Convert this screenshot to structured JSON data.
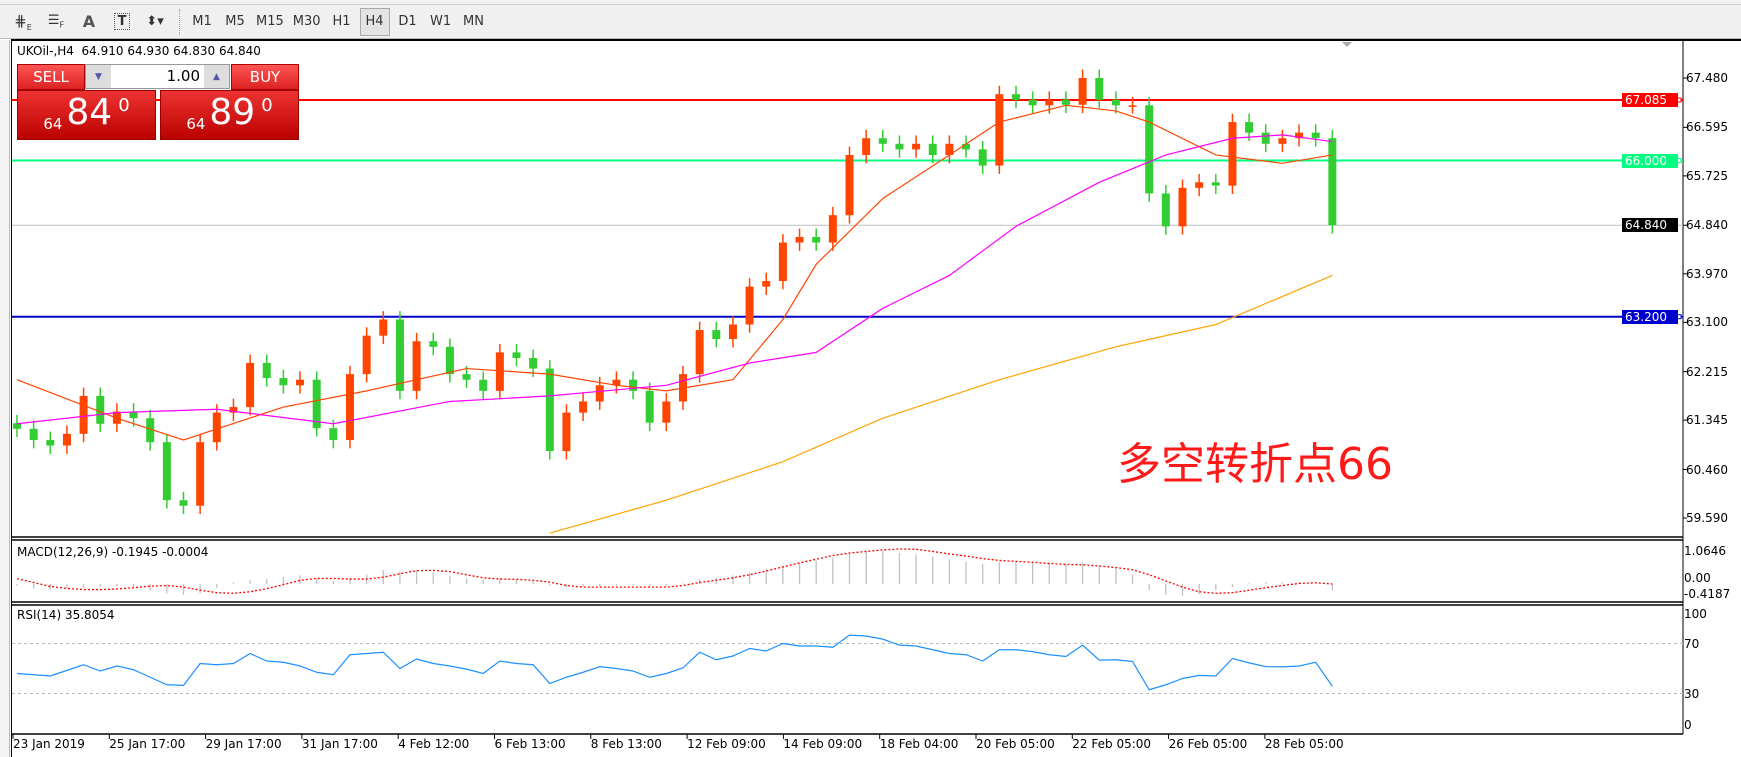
{
  "toolbar": {
    "tools": [
      {
        "icon": "fibonacci-expansion-icon",
        "label": "E"
      },
      {
        "icon": "fibonacci-fan-icon",
        "label": "F"
      },
      {
        "icon": "text-icon",
        "label": "A"
      },
      {
        "icon": "text-label-icon",
        "label": "T"
      },
      {
        "icon": "arrows-icon",
        "label": "▾"
      }
    ],
    "timeframes": [
      "M1",
      "M5",
      "M15",
      "M30",
      "H1",
      "H4",
      "D1",
      "W1",
      "MN"
    ],
    "active_timeframe": "H4"
  },
  "chart": {
    "title": "UKOil-,H4  64.910 64.930 64.830 64.840",
    "symbol": "UKOil-",
    "timeframe": "H4"
  },
  "trade_panel": {
    "sell_label": "SELL",
    "buy_label": "BUY",
    "lot": "1.00",
    "sell_big": "84",
    "sell_small": "64",
    "sell_sup": "0",
    "buy_big": "89",
    "buy_small": "64",
    "buy_sup": "0"
  },
  "annotation": "多空转折点66",
  "indicators": {
    "macd_label": "MACD(12,26,9) -0.1945 -0.0004",
    "rsi_label": "RSI(14) 35.8054"
  },
  "colors": {
    "bull": "#ff4500",
    "bear": "#32cd32",
    "ma_fast": "#ff4500",
    "ma_mid": "#ff00ff",
    "ma_slow": "#ffa500",
    "rsi": "#1e90ff",
    "macd_signal": "#ff0000",
    "macd_hist": "#c0c0c0"
  },
  "chart_data": {
    "type": "candlestick",
    "price_axis": {
      "ticks": [
        "67.480",
        "66.595",
        "65.725",
        "64.840",
        "63.970",
        "63.100",
        "62.215",
        "61.345",
        "60.460",
        "59.590"
      ],
      "range": [
        59.59,
        67.48
      ]
    },
    "time_axis": [
      "23 Jan 2019",
      "25 Jan 17:00",
      "29 Jan 17:00",
      "31 Jan 17:00",
      "4 Feb 12:00",
      "6 Feb 13:00",
      "8 Feb 13:00",
      "12 Feb 09:00",
      "14 Feb 09:00",
      "18 Feb 04:00",
      "20 Feb 05:00",
      "22 Feb 05:00",
      "26 Feb 05:00",
      "28 Feb 05:00"
    ],
    "closes": [
      61.19,
      60.99,
      60.89,
      61.1,
      61.78,
      61.28,
      61.5,
      61.38,
      60.95,
      59.91,
      59.81,
      60.95,
      61.48,
      61.58,
      62.37,
      62.1,
      61.97,
      62.07,
      61.2,
      60.99,
      62.17,
      62.86,
      63.15,
      61.87,
      62.76,
      62.66,
      62.17,
      62.07,
      61.87,
      62.56,
      62.46,
      62.27,
      60.79,
      61.48,
      61.68,
      61.97,
      62.07,
      61.87,
      61.3,
      61.68,
      62.17,
      62.96,
      62.8,
      63.06,
      63.74,
      63.84,
      64.53,
      64.63,
      64.53,
      65.02,
      66.1,
      66.4,
      66.3,
      66.2,
      66.3,
      66.1,
      66.3,
      66.2,
      65.91,
      67.19,
      67.09,
      66.99,
      67.09,
      67.0,
      67.48,
      67.09,
      66.99,
      66.99,
      65.41,
      64.82,
      65.51,
      65.61,
      65.55,
      66.69,
      66.5,
      66.3,
      66.4,
      66.5,
      66.4,
      64.84
    ],
    "horizontal_lines": [
      {
        "price": 67.085,
        "label": "67.085",
        "color": "#ff0000"
      },
      {
        "price": 66.0,
        "label": "66.000",
        "color": "#00ff80"
      },
      {
        "price": 64.84,
        "label": "64.840",
        "color": "#000000",
        "line": "#c0c0c0"
      },
      {
        "price": 63.2,
        "label": "63.200",
        "color": "#0000cd"
      }
    ],
    "ma_fast": [
      [
        0,
        62.07
      ],
      [
        6,
        61.38
      ],
      [
        10,
        60.99
      ],
      [
        16,
        61.58
      ],
      [
        21,
        61.87
      ],
      [
        27,
        62.27
      ],
      [
        32,
        62.17
      ],
      [
        36,
        61.97
      ],
      [
        39,
        61.87
      ],
      [
        43,
        62.07
      ],
      [
        46,
        63.15
      ],
      [
        48,
        64.14
      ],
      [
        52,
        65.32
      ],
      [
        56,
        66.1
      ],
      [
        59,
        66.69
      ],
      [
        63,
        66.99
      ],
      [
        66,
        66.89
      ],
      [
        68,
        66.69
      ],
      [
        72,
        66.1
      ],
      [
        76,
        65.95
      ],
      [
        79,
        66.1
      ]
    ],
    "ma_mid": [
      [
        0,
        61.28
      ],
      [
        6,
        61.48
      ],
      [
        12,
        61.54
      ],
      [
        19,
        61.28
      ],
      [
        26,
        61.68
      ],
      [
        32,
        61.78
      ],
      [
        39,
        61.97
      ],
      [
        44,
        62.37
      ],
      [
        48,
        62.56
      ],
      [
        52,
        63.35
      ],
      [
        56,
        63.94
      ],
      [
        60,
        64.82
      ],
      [
        65,
        65.61
      ],
      [
        69,
        66.1
      ],
      [
        73,
        66.4
      ],
      [
        76,
        66.46
      ],
      [
        79,
        66.34
      ]
    ],
    "ma_slow": [
      [
        32,
        59.32
      ],
      [
        39,
        59.91
      ],
      [
        46,
        60.6
      ],
      [
        52,
        61.38
      ],
      [
        59,
        62.07
      ],
      [
        66,
        62.66
      ],
      [
        72,
        63.06
      ],
      [
        79,
        63.94
      ]
    ],
    "macd": {
      "axis": [
        "1.0646",
        "0.00",
        "-0.4187"
      ],
      "hist": [
        -0.05,
        -0.15,
        -0.18,
        -0.15,
        -0.12,
        -0.1,
        -0.08,
        -0.1,
        -0.2,
        -0.3,
        -0.35,
        -0.3,
        -0.12,
        0.05,
        0.12,
        0.15,
        0.22,
        0.28,
        0.2,
        0.1,
        0.2,
        0.3,
        0.45,
        0.4,
        0.45,
        0.38,
        0.25,
        0.18,
        0.15,
        0.2,
        0.15,
        0.12,
        -0.05,
        -0.12,
        -0.1,
        -0.08,
        -0.05,
        -0.05,
        -0.1,
        -0.08,
        0.02,
        0.15,
        0.2,
        0.28,
        0.38,
        0.48,
        0.6,
        0.68,
        0.75,
        0.85,
        1.0,
        1.05,
        1.06,
        1.0,
        0.95,
        0.88,
        0.8,
        0.72,
        0.65,
        0.7,
        0.72,
        0.7,
        0.68,
        0.65,
        0.7,
        0.6,
        0.5,
        0.3,
        -0.2,
        -0.35,
        -0.38,
        -0.32,
        -0.2,
        -0.1,
        0.02,
        0.05,
        0.05,
        0.06,
        0.0,
        -0.19
      ],
      "signal": [
        0.17,
        0.05,
        -0.08,
        -0.14,
        -0.18,
        -0.18,
        -0.16,
        -0.12,
        -0.07,
        -0.05,
        -0.1,
        -0.2,
        -0.28,
        -0.3,
        -0.25,
        -0.15,
        -0.02,
        0.12,
        0.18,
        0.18,
        0.16,
        0.16,
        0.22,
        0.33,
        0.43,
        0.44,
        0.4,
        0.3,
        0.2,
        0.16,
        0.15,
        0.12,
        0.06,
        -0.05,
        -0.1,
        -0.1,
        -0.1,
        -0.1,
        -0.1,
        -0.1,
        -0.05,
        0.05,
        0.12,
        0.2,
        0.3,
        0.42,
        0.55,
        0.68,
        0.8,
        0.92,
        1.0,
        1.05,
        1.1,
        1.13,
        1.12,
        1.05,
        0.97,
        0.9,
        0.82,
        0.76,
        0.73,
        0.7,
        0.66,
        0.63,
        0.62,
        0.58,
        0.53,
        0.46,
        0.3,
        0.1,
        -0.1,
        -0.25,
        -0.3,
        -0.28,
        -0.2,
        -0.12,
        -0.05,
        0.02,
        0.04,
        0.0
      ]
    },
    "rsi": {
      "axis": [
        "100",
        "70",
        "30",
        "0"
      ],
      "levels": [
        70,
        30
      ],
      "values": [
        46,
        45,
        44,
        48.5,
        53,
        48,
        52,
        49,
        43,
        37,
        36.5,
        54,
        53,
        54,
        62,
        56,
        55,
        52,
        47,
        45,
        61,
        62,
        63,
        50,
        57.6,
        54,
        52,
        49.5,
        46,
        56,
        54,
        53,
        38,
        43,
        47,
        51.5,
        50,
        48,
        43,
        46,
        50.5,
        63,
        57,
        60,
        66,
        64,
        70,
        68,
        68,
        67,
        76.7,
        76,
        73.5,
        68.7,
        68,
        65,
        62,
        61,
        56,
        65,
        65,
        63.5,
        61,
        59.6,
        68.7,
        56.7,
        57,
        55.6,
        33,
        37,
        42,
        44.5,
        44,
        58,
        54.5,
        51.5,
        51.3,
        52,
        55,
        35.8
      ]
    }
  }
}
